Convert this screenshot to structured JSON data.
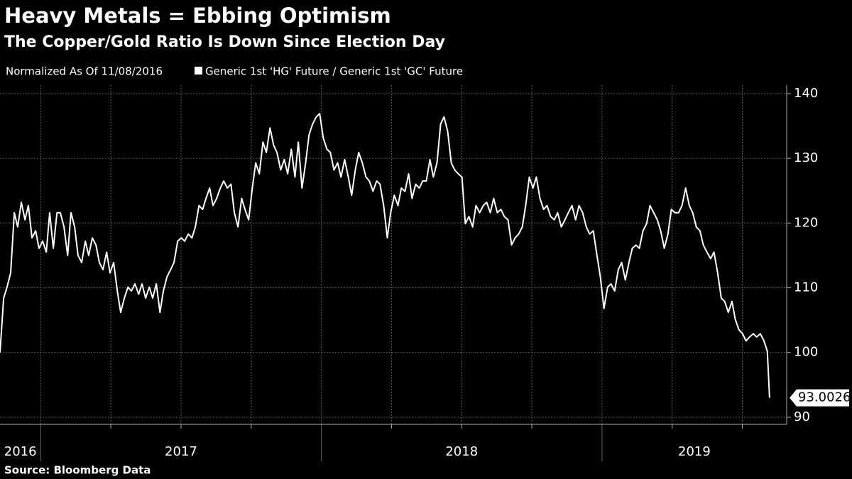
{
  "chart_data": {
    "type": "line",
    "title": "Heavy Metals = Ebbing Optimism",
    "subtitle": "The Copper/Gold Ratio Is Down Since Election Day",
    "note": "Normalized As Of 11/08/2016",
    "source": "Source: Bloomberg Data",
    "year_labels": [
      "2016",
      "2017",
      "2018",
      "2019"
    ],
    "xlim": [
      2016.855,
      2019.658
    ],
    "xticks": [
      2017,
      2017.25,
      2017.5,
      2017.75,
      2018,
      2018.25,
      2018.5,
      2018.75,
      2019,
      2019.25,
      2019.5
    ],
    "ylim": [
      88.9,
      141.3
    ],
    "yticks": [
      90,
      100,
      110,
      120,
      130,
      140
    ],
    "grid": true,
    "x": [
      2016.855,
      2016.868,
      2016.88,
      2016.893,
      2016.906,
      2016.918,
      2016.931,
      2016.944,
      2016.956,
      2016.969,
      2016.982,
      2016.994,
      2017.007,
      2017.02,
      2017.032,
      2017.045,
      2017.058,
      2017.07,
      2017.083,
      2017.096,
      2017.108,
      2017.121,
      2017.133,
      2017.146,
      2017.159,
      2017.171,
      2017.184,
      2017.197,
      2017.209,
      2017.222,
      2017.235,
      2017.247,
      2017.26,
      2017.273,
      2017.285,
      2017.298,
      2017.311,
      2017.323,
      2017.336,
      2017.349,
      2017.361,
      2017.374,
      2017.387,
      2017.399,
      2017.412,
      2017.425,
      2017.437,
      2017.45,
      2017.463,
      2017.475,
      2017.488,
      2017.501,
      2017.513,
      2017.526,
      2017.539,
      2017.551,
      2017.564,
      2017.577,
      2017.589,
      2017.602,
      2017.614,
      2017.627,
      2017.64,
      2017.652,
      2017.665,
      2017.678,
      2017.69,
      2017.703,
      2017.716,
      2017.728,
      2017.741,
      2017.754,
      2017.766,
      2017.779,
      2017.792,
      2017.804,
      2017.817,
      2017.83,
      2017.842,
      2017.855,
      2017.868,
      2017.88,
      2017.893,
      2017.906,
      2017.918,
      2017.931,
      2017.944,
      2017.956,
      2017.969,
      2017.982,
      2017.994,
      2018.007,
      2018.02,
      2018.032,
      2018.045,
      2018.058,
      2018.07,
      2018.083,
      2018.096,
      2018.108,
      2018.121,
      2018.133,
      2018.146,
      2018.159,
      2018.171,
      2018.184,
      2018.197,
      2018.209,
      2018.222,
      2018.235,
      2018.247,
      2018.26,
      2018.273,
      2018.285,
      2018.298,
      2018.311,
      2018.323,
      2018.336,
      2018.349,
      2018.361,
      2018.374,
      2018.387,
      2018.399,
      2018.412,
      2018.425,
      2018.437,
      2018.45,
      2018.463,
      2018.475,
      2018.488,
      2018.501,
      2018.513,
      2018.526,
      2018.539,
      2018.551,
      2018.564,
      2018.577,
      2018.589,
      2018.602,
      2018.614,
      2018.627,
      2018.64,
      2018.652,
      2018.665,
      2018.678,
      2018.69,
      2018.703,
      2018.716,
      2018.728,
      2018.741,
      2018.754,
      2018.766,
      2018.779,
      2018.792,
      2018.804,
      2018.817,
      2018.83,
      2018.842,
      2018.855,
      2018.868,
      2018.88,
      2018.893,
      2018.906,
      2018.918,
      2018.931,
      2018.944,
      2018.956,
      2018.969,
      2018.982,
      2018.994,
      2019.007,
      2019.02,
      2019.032,
      2019.045,
      2019.058,
      2019.07,
      2019.083,
      2019.096,
      2019.108,
      2019.121,
      2019.133,
      2019.146,
      2019.159,
      2019.171,
      2019.184,
      2019.197,
      2019.209,
      2019.222,
      2019.235,
      2019.247,
      2019.26,
      2019.273,
      2019.285,
      2019.298,
      2019.311,
      2019.323,
      2019.336,
      2019.349,
      2019.361,
      2019.374,
      2019.387,
      2019.399,
      2019.412,
      2019.425,
      2019.437,
      2019.45,
      2019.463,
      2019.475,
      2019.488,
      2019.501,
      2019.513,
      2019.526,
      2019.539,
      2019.551,
      2019.564,
      2019.577,
      2019.589,
      2019.597
    ],
    "series": [
      {
        "name": "Generic 1st 'HG' Future / Generic 1st 'GC' Future",
        "color": "#ffffff",
        "values": [
          100,
          108.4,
          110.1,
          112.3,
          121.6,
          119.4,
          123.2,
          120.5,
          122.7,
          117.7,
          118.8,
          116.1,
          117.2,
          115.5,
          121.6,
          116.1,
          121.6,
          121.6,
          119.4,
          115.0,
          121.6,
          119.4,
          115.0,
          113.9,
          117.2,
          115.0,
          117.7,
          116.6,
          113.9,
          112.8,
          115.5,
          112.3,
          113.9,
          109.5,
          106.2,
          108.4,
          110.1,
          109.5,
          110.6,
          109.0,
          110.6,
          108.4,
          110.1,
          108.4,
          110.6,
          106.2,
          109.5,
          111.7,
          112.8,
          113.9,
          117.2,
          117.7,
          117.2,
          118.3,
          117.7,
          119.4,
          122.7,
          122.1,
          123.8,
          125.4,
          122.7,
          123.8,
          125.4,
          126.5,
          125.4,
          126.0,
          121.6,
          119.4,
          123.8,
          122.1,
          120.5,
          125.4,
          129.3,
          127.6,
          132.5,
          130.9,
          134.7,
          132.0,
          130.9,
          128.2,
          129.8,
          127.6,
          131.4,
          127.1,
          132.5,
          125.4,
          129.3,
          133.6,
          135.3,
          136.4,
          136.9,
          133.1,
          131.4,
          130.9,
          128.2,
          129.3,
          127.1,
          129.8,
          127.1,
          124.3,
          128.2,
          130.9,
          129.3,
          127.1,
          126.5,
          124.9,
          126.5,
          126.0,
          122.7,
          117.7,
          121.6,
          124.3,
          122.7,
          125.4,
          124.9,
          127.6,
          123.8,
          126.0,
          125.4,
          126.5,
          126.5,
          129.8,
          127.1,
          129.3,
          135.3,
          136.4,
          134.2,
          129.3,
          128.2,
          127.6,
          127.1,
          119.9,
          121.0,
          119.4,
          122.7,
          121.6,
          122.7,
          123.2,
          121.6,
          123.8,
          121.6,
          122.1,
          121.0,
          120.5,
          116.6,
          117.7,
          118.3,
          119.4,
          122.7,
          127.1,
          125.4,
          127.1,
          123.8,
          122.1,
          122.7,
          121.0,
          120.5,
          121.6,
          119.4,
          120.5,
          121.6,
          122.7,
          120.5,
          122.7,
          121.6,
          119.4,
          118.3,
          118.8,
          115.0,
          111.7,
          106.8,
          110.1,
          110.6,
          109.5,
          112.8,
          113.9,
          111.2,
          113.9,
          116.1,
          116.6,
          116.1,
          118.8,
          119.9,
          122.7,
          121.6,
          120.5,
          118.8,
          116.1,
          118.3,
          122.1,
          121.6,
          121.6,
          122.7,
          125.4,
          122.7,
          121.6,
          119.4,
          118.8,
          116.6,
          115.5,
          114.5,
          115.5,
          112.3,
          108.4,
          107.9,
          106.2,
          107.9,
          105.1,
          103.5,
          102.9,
          101.8,
          102.4,
          102.9,
          102.4,
          102.9,
          101.8,
          100.2,
          93.0026
        ]
      }
    ]
  }
}
